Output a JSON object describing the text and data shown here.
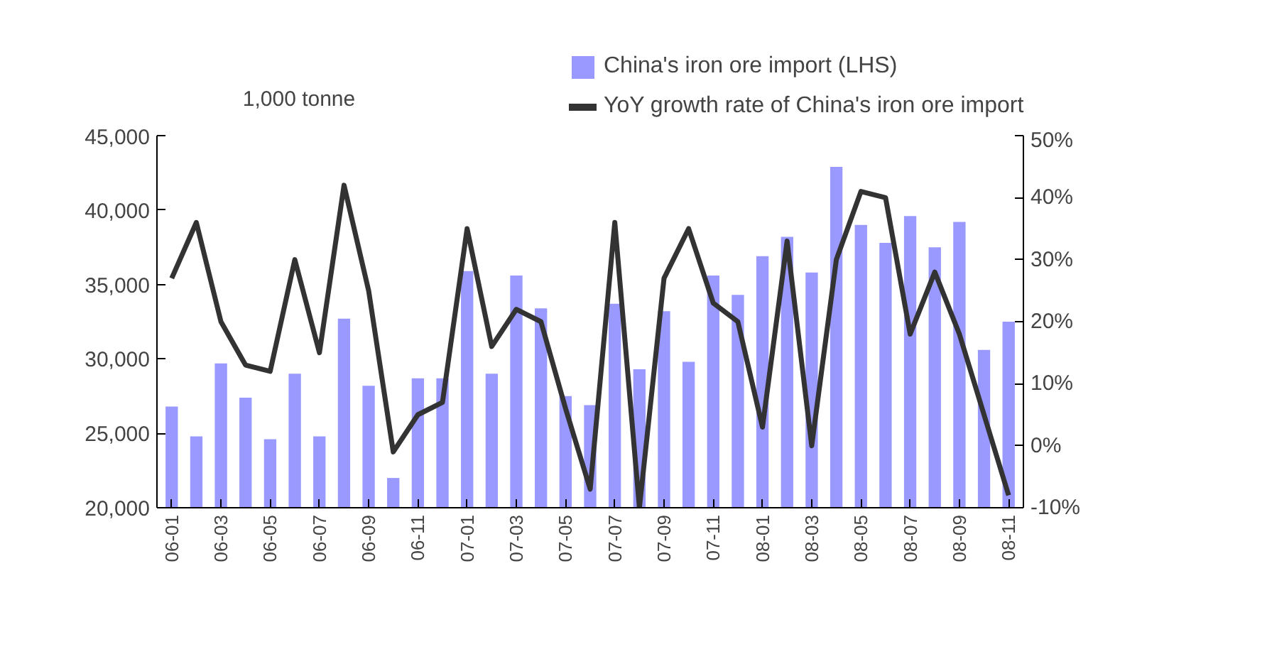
{
  "chart_data": {
    "type": "bar",
    "ylabel": "1,000 tonne",
    "categories": [
      "06-01",
      null,
      "06-03",
      null,
      "06-05",
      null,
      "06-07",
      null,
      "06-09",
      null,
      "06-11",
      null,
      "07-01",
      null,
      "07-03",
      null,
      "07-05",
      null,
      "07-07",
      null,
      "07-09",
      null,
      "07-11",
      null,
      "08-01",
      null,
      "08-03",
      null,
      "08-05",
      null,
      "08-07",
      null,
      "08-09",
      null,
      "08-11"
    ],
    "series": [
      {
        "name": "China's iron ore import (LHS)",
        "color": "#9999ff",
        "values": [
          26800,
          24800,
          29700,
          27400,
          24600,
          29000,
          24800,
          32700,
          28200,
          22000,
          28700,
          28700,
          35900,
          29000,
          35600,
          33400,
          27500,
          26900,
          33700,
          29300,
          33200,
          29800,
          35600,
          34300,
          36900,
          38200,
          35800,
          42900,
          39000,
          37800,
          39600,
          37500,
          39200,
          30600,
          32500
        ]
      },
      {
        "name": "YoY growth rate of China's iron ore import",
        "type": "line",
        "axis": "y2",
        "color": "#333333",
        "values": [
          27,
          36,
          20,
          13,
          12,
          30,
          15,
          42,
          25,
          -1,
          5,
          7,
          35,
          16,
          22,
          20,
          6,
          -7,
          36,
          -10,
          27,
          35,
          23,
          20,
          3,
          33,
          0,
          30,
          41,
          40,
          18,
          28,
          18,
          5,
          -8
        ]
      }
    ],
    "ylim": [
      20000,
      45000
    ],
    "yticks": [
      {
        "value": 20000,
        "label": "20,000"
      },
      {
        "value": 25000,
        "label": "25,000"
      },
      {
        "value": 30000,
        "label": "30,000"
      },
      {
        "value": 35000,
        "label": "35,000"
      },
      {
        "value": 40000,
        "label": "40,000"
      },
      {
        "value": 45000,
        "label": "45,000"
      }
    ],
    "y2lim": [
      -10,
      50
    ],
    "y2ticks": [
      {
        "value": -10,
        "label": "-10%"
      },
      {
        "value": 0,
        "label": "0%"
      },
      {
        "value": 10,
        "label": "10%"
      },
      {
        "value": 20,
        "label": "20%"
      },
      {
        "value": 30,
        "label": "30%"
      },
      {
        "value": 40,
        "label": "40%"
      },
      {
        "value": 50,
        "label": "50%"
      }
    ],
    "grid": false,
    "legend": "top"
  }
}
